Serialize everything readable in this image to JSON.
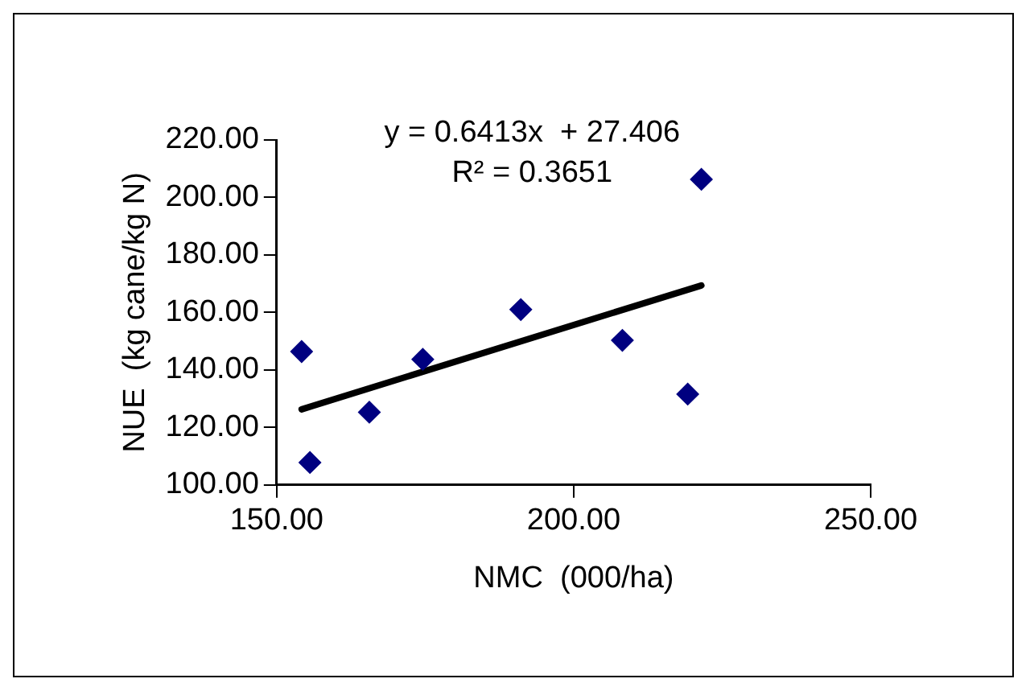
{
  "chart_data": {
    "type": "scatter",
    "xlabel": "NMC  (000/ha)",
    "ylabel": "NUE  (kg cane/kg N)",
    "annotations": [
      "y = 0.6413x  + 27.406",
      "R² = 0.3651"
    ],
    "grid": false,
    "legend": false,
    "xlim": [
      150,
      250
    ],
    "xticks": [
      {
        "value": 150,
        "label": "150.00"
      },
      {
        "value": 200,
        "label": "200.00"
      },
      {
        "value": 250,
        "label": "250.00"
      }
    ],
    "ylim": [
      100,
      220
    ],
    "yticks": [
      {
        "value": 100,
        "label": "100.00"
      },
      {
        "value": 120,
        "label": "120.00"
      },
      {
        "value": 140,
        "label": "140.00"
      },
      {
        "value": 160,
        "label": "160.00"
      },
      {
        "value": 180,
        "label": "180.00"
      },
      {
        "value": 200,
        "label": "200.00"
      },
      {
        "value": 220,
        "label": "220.00"
      }
    ],
    "series": [
      {
        "color": "#000080",
        "marker": "diamond",
        "x": [
          154.2,
          155.6,
          165.6,
          174.6,
          191.1,
          208.2,
          219.2,
          221.5
        ],
        "values": [
          146.4,
          107.8,
          125.3,
          143.7,
          161,
          150.3,
          131.6,
          206.3
        ]
      },
      {
        "type": "line",
        "marker": "none",
        "color": "#000000",
        "x": [
          154.2,
          221.5
        ],
        "values": [
          126.3,
          169.4
        ]
      }
    ]
  }
}
